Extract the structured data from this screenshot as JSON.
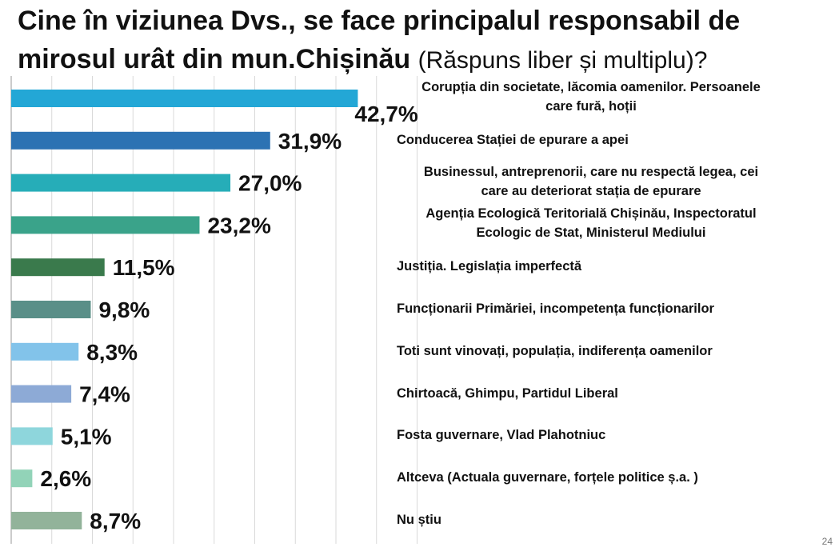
{
  "title": {
    "main": "Cine în viziunea Dvs., se face principalul responsabil de mirosul urât din mun.Chișinău",
    "sub": "(Răspuns liber și multiplu)?"
  },
  "page_number": "24",
  "chart_data": {
    "type": "bar",
    "orientation": "horizontal",
    "title": "Cine în viziunea Dvs., se face principalul responsabil de mirosul urât din mun.Chișinău (Răspuns liber și multiplu)?",
    "xlim": [
      0,
      50
    ],
    "grid": true,
    "categories": [
      "Corupția din societate, lăcomia oamenilor. Persoanele care fură, hoții",
      "Conducerea Stației de epurare a apei",
      "Businessul, antreprenorii, care nu respectă legea, cei care au deteriorat stația de epurare",
      "Agenția Ecologică Teritorială Chișinău, Inspectoratul Ecologic de Stat, Ministerul Mediului",
      "Justiția. Legislația imperfectă",
      "Funcționarii Primăriei, incompetența funcționarilor",
      "Toti sunt vinovați, populația, indiferența oamenilor",
      "Chirtoacă, Ghimpu, Partidul Liberal",
      "Fosta guvernare, Vlad Plahotniuc",
      "Altceva (Actuala guvernare, forțele politice ș.a. )",
      "Nu știu"
    ],
    "values": [
      42.7,
      31.9,
      27.0,
      23.2,
      11.5,
      9.8,
      8.3,
      7.4,
      5.1,
      2.6,
      8.7
    ],
    "labels": [
      "42,7%",
      "31,9%",
      "27,0%",
      "23,2%",
      "11,5%",
      "9,8%",
      "8,3%",
      "7,4%",
      "5,1%",
      "2,6%",
      "8,7%"
    ],
    "label_lines": [
      [
        "Corupția din societate, lăcomia oamenilor. Persoanele",
        "care fură, hoții"
      ],
      [
        "Conducerea Stației de epurare a apei"
      ],
      [
        "Businessul, antreprenorii, care nu respectă legea, cei",
        "care au deteriorat stația de epurare"
      ],
      [
        "Agenția Ecologică Teritorială Chișinău, Inspectoratul",
        "Ecologic de Stat, Ministerul Mediului"
      ],
      [
        "Justiția. Legislația imperfectă"
      ],
      [
        "Funcționarii Primăriei, incompetența funcționarilor"
      ],
      [
        "Toti sunt vinovați, populația, indiferența oamenilor"
      ],
      [
        "Chirtoacă, Ghimpu, Partidul Liberal"
      ],
      [
        "Fosta guvernare, Vlad Plahotniuc"
      ],
      [
        "Altceva (Actuala guvernare, forțele politice ș.a. )"
      ],
      [
        "Nu știu"
      ]
    ],
    "colors": [
      "#23a7d6",
      "#2c72b3",
      "#26adb8",
      "#3aa38a",
      "#3a7a4c",
      "#5a8f88",
      "#82c3ea",
      "#8daad6",
      "#8ed6dc",
      "#92d3b8",
      "#92b39a"
    ]
  }
}
